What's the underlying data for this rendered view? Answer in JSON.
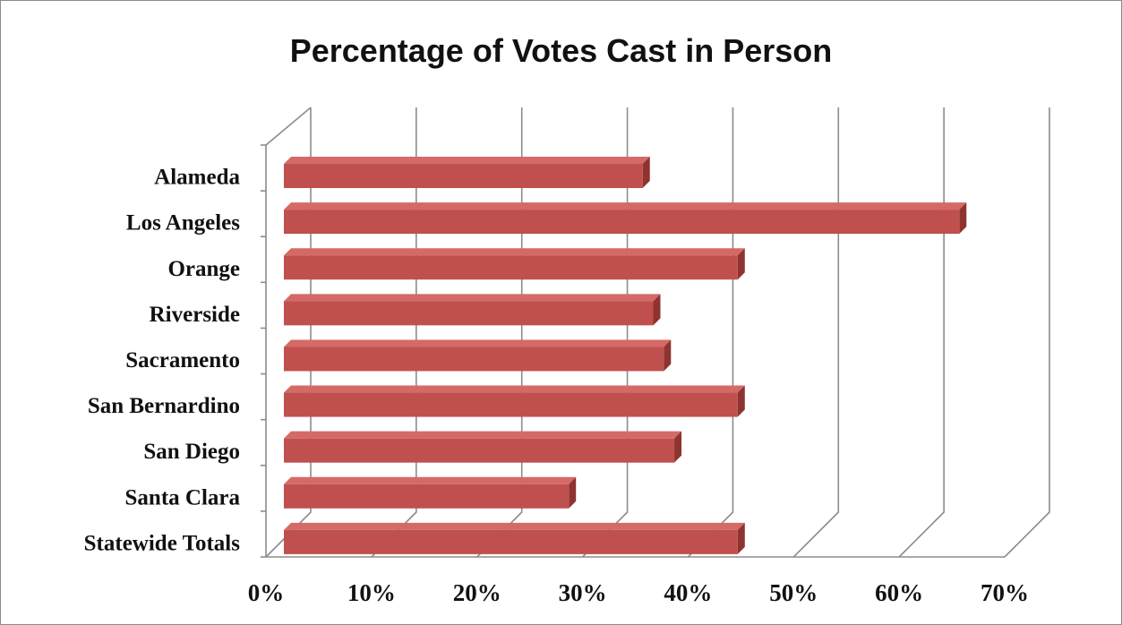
{
  "chart_data": {
    "type": "bar",
    "orientation": "horizontal",
    "style": "3d",
    "title": "Percentage of Votes Cast in Person",
    "categories": [
      "Alameda",
      "Los Angeles",
      "Orange",
      "Riverside",
      "Sacramento",
      "San Bernardino",
      "San Diego",
      "Santa Clara",
      "Statewide Totals"
    ],
    "values": [
      34,
      64,
      43,
      35,
      36,
      43,
      37,
      27,
      43
    ],
    "x_ticks": [
      "0%",
      "10%",
      "20%",
      "30%",
      "40%",
      "50%",
      "60%",
      "70%"
    ],
    "xlim": [
      0,
      70
    ],
    "xlabel": "",
    "ylabel": "",
    "grid": true,
    "legend": "none",
    "colors": {
      "bar_front": "#c0504d",
      "bar_top": "#d46a67",
      "bar_side": "#8e3330",
      "grid": "#8c8c8c"
    }
  }
}
